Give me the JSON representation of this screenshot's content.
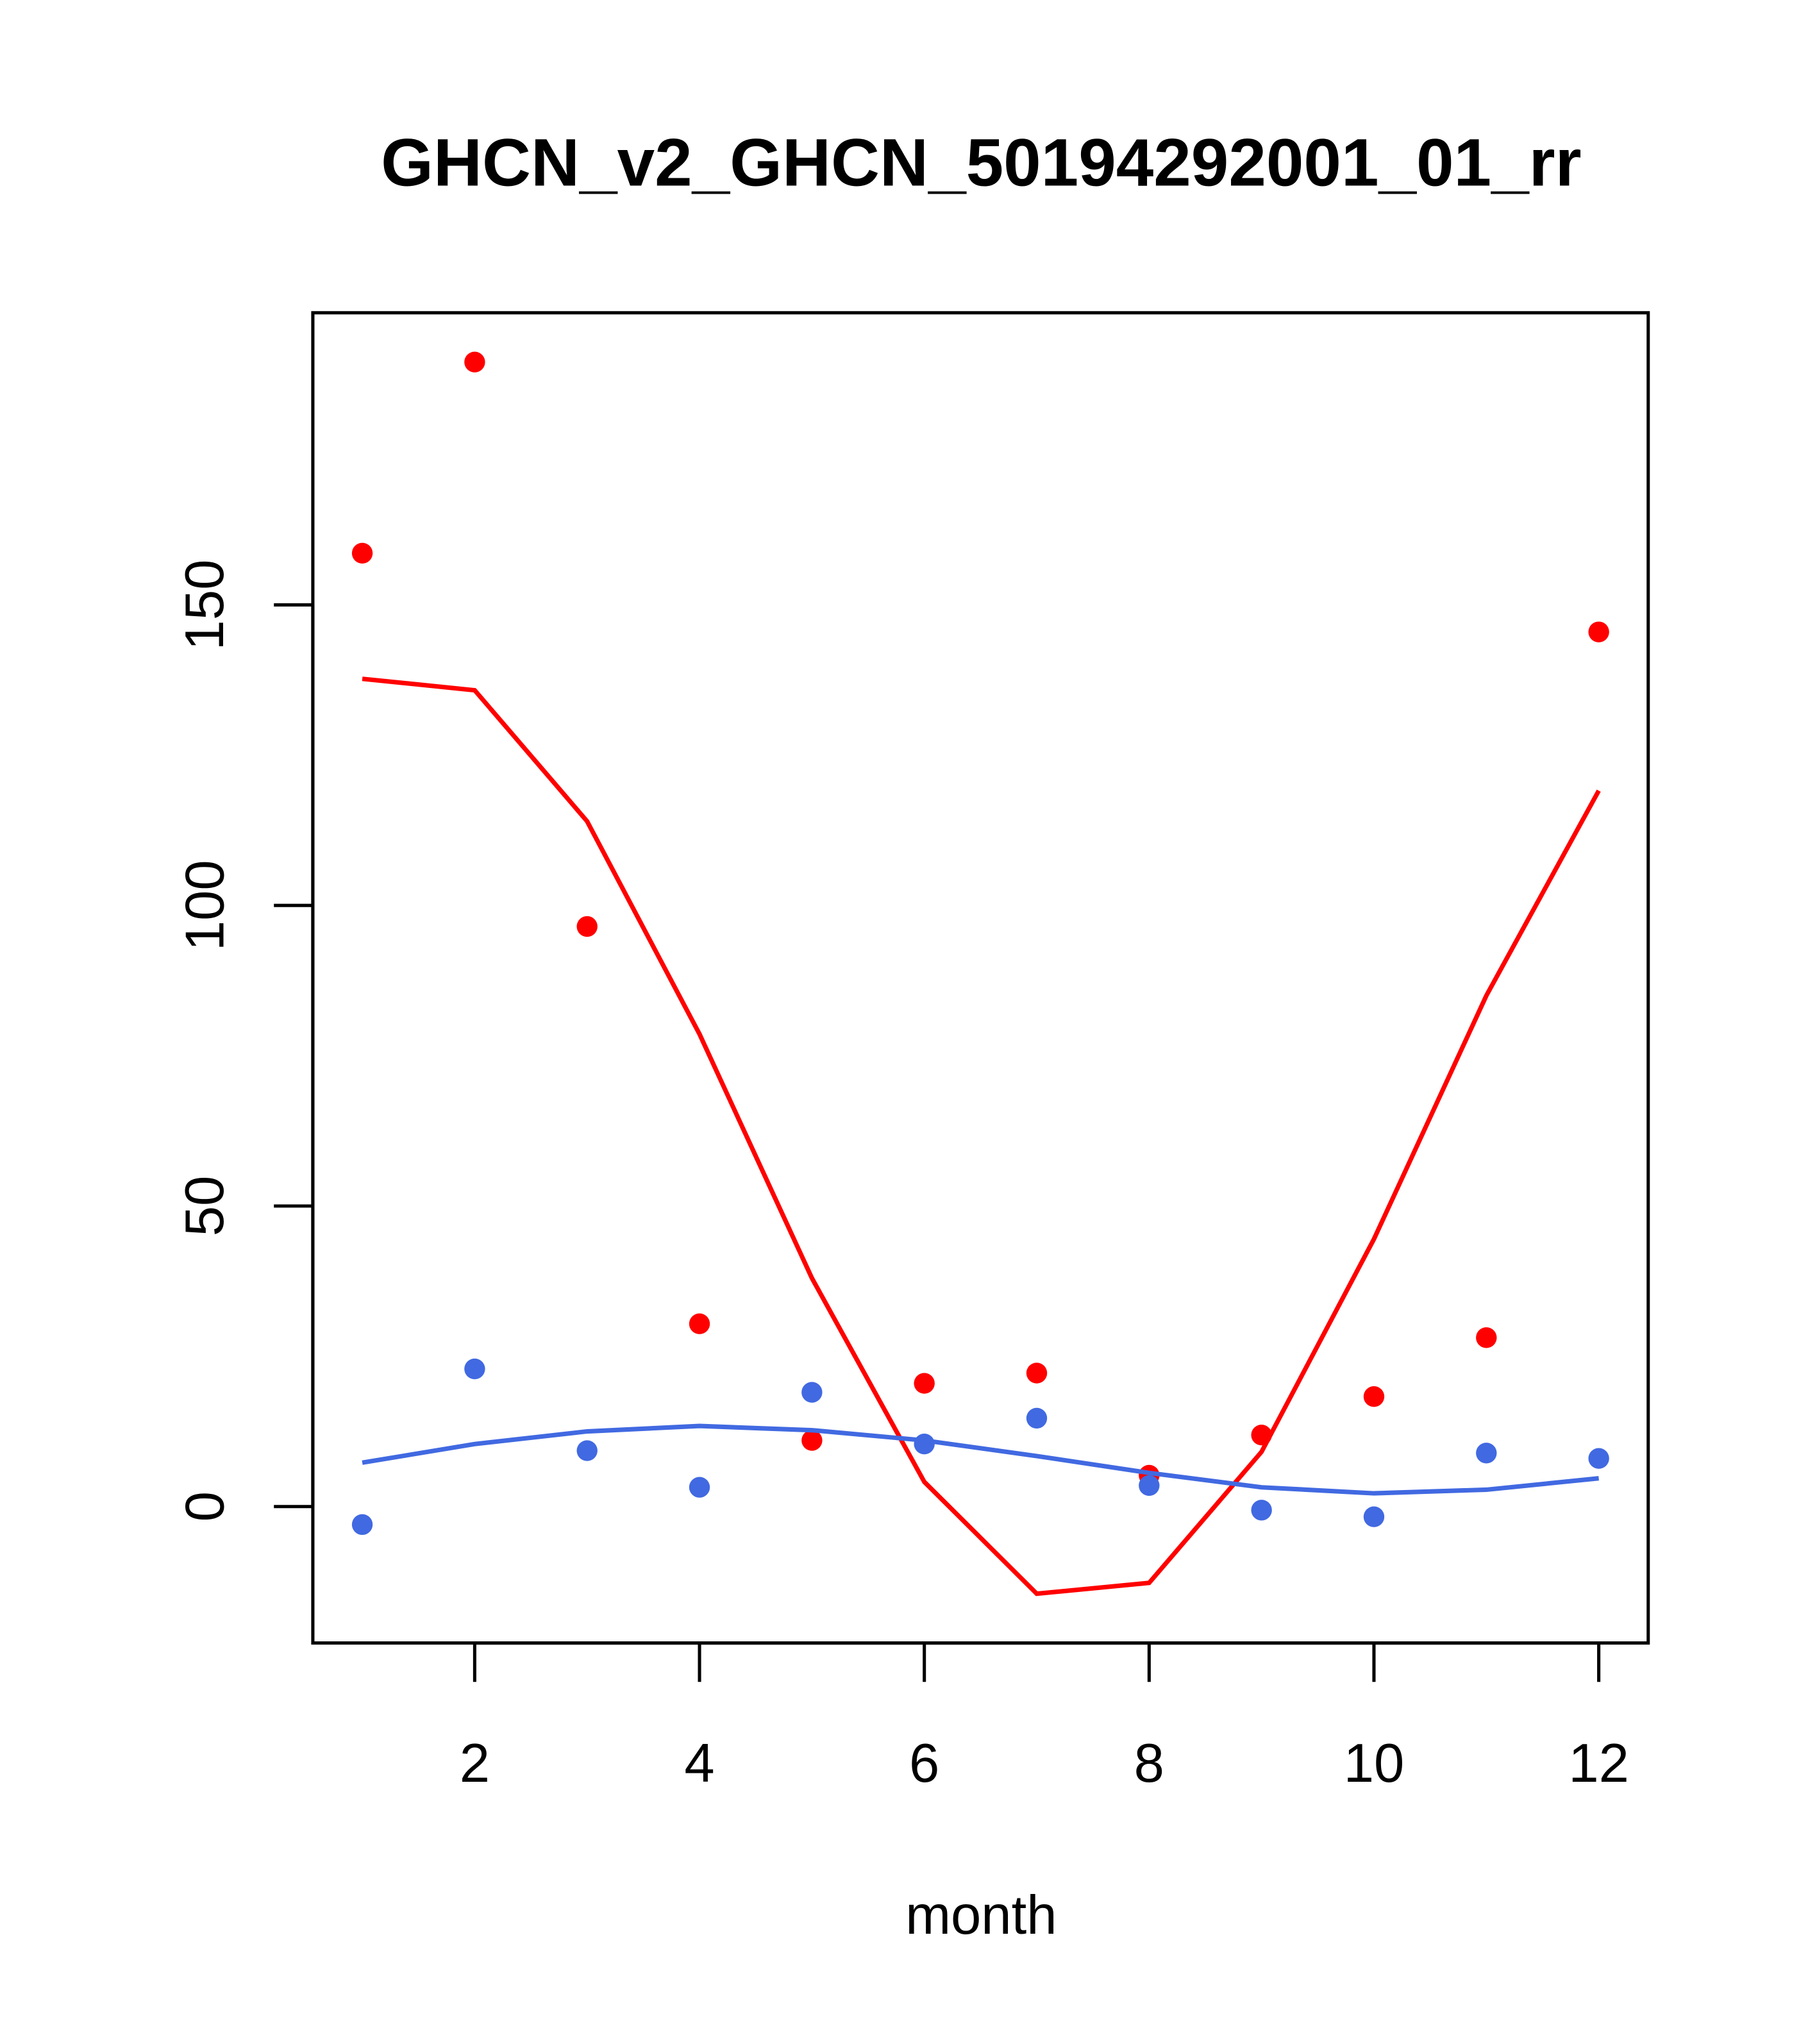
{
  "chart_data": {
    "type": "scatter",
    "title": "GHCN_v2_GHCN_50194292001_01_rr",
    "xlabel": "month",
    "ylabel": "",
    "xlim": [
      0.56,
      12.44
    ],
    "ylim": [
      -22.7,
      198.6
    ],
    "x_ticks": [
      2,
      4,
      6,
      8,
      10,
      12
    ],
    "x_tick_labels": [
      "2",
      "4",
      "6",
      "8",
      "10",
      "12"
    ],
    "y_ticks": [
      0,
      50,
      100,
      150
    ],
    "y_tick_labels": [
      "0",
      "50",
      "100",
      "150"
    ],
    "grid": false,
    "x": [
      1,
      2,
      3,
      4,
      5,
      6,
      7,
      8,
      9,
      10,
      11,
      12
    ],
    "series": [
      {
        "name": "red points",
        "kind": "points",
        "color": "#ff0000",
        "values": [
          158.6,
          190.4,
          96.5,
          30.4,
          11.0,
          20.5,
          22.2,
          5.2,
          11.9,
          18.3,
          28.1,
          145.5
        ]
      },
      {
        "name": "red line",
        "kind": "line",
        "color": "#ff0000",
        "values": [
          137.7,
          135.8,
          114.0,
          78.6,
          38.0,
          4.1,
          -14.5,
          -12.7,
          9.1,
          44.5,
          85.0,
          119.1
        ]
      },
      {
        "name": "blue points",
        "kind": "points",
        "color": "#4169e1",
        "values": [
          -3.0,
          22.9,
          9.3,
          3.2,
          19.0,
          10.4,
          14.7,
          3.5,
          -0.6,
          -1.7,
          8.9,
          8.0
        ]
      },
      {
        "name": "blue line",
        "kind": "line",
        "color": "#4169e1",
        "values": [
          7.3,
          10.4,
          12.5,
          13.4,
          12.7,
          11.0,
          8.4,
          5.6,
          3.2,
          2.2,
          2.8,
          4.7
        ]
      }
    ]
  }
}
